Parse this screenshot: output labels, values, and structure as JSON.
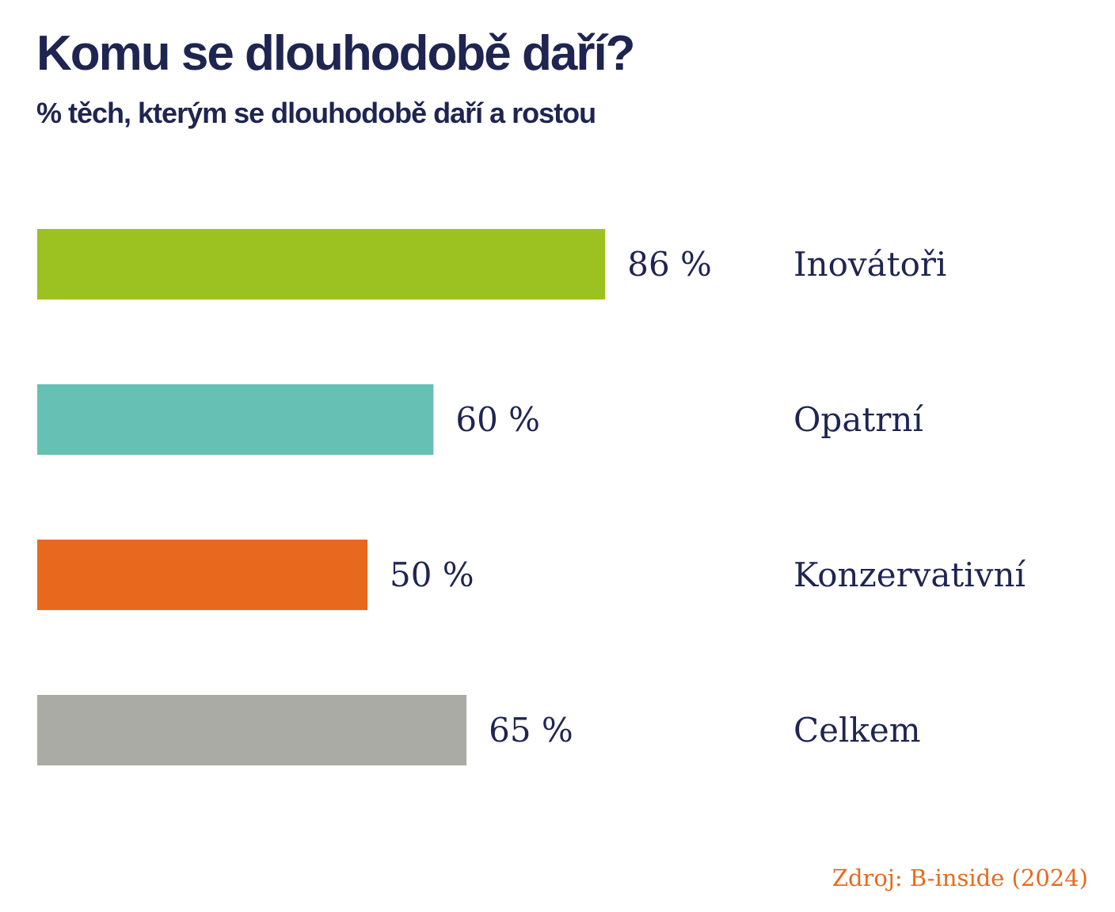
{
  "title": "Komu se dlouhodobě daří?",
  "subtitle": "% těch, kterým se dlouhodobě daří a rostou",
  "source": "Zdroj: B-inside (2024)",
  "colors": {
    "text": "#1f2551",
    "source": "#e8691e"
  },
  "chart_data": {
    "type": "bar",
    "orientation": "horizontal",
    "categories": [
      "Inovátoři",
      "Opatrní",
      "Konzervativní",
      "Celkem"
    ],
    "values": [
      86,
      60,
      50,
      65
    ],
    "value_labels": [
      "86 %",
      "60 %",
      "50 %",
      "65 %"
    ],
    "bar_colors": [
      "#9bc220",
      "#67c0b4",
      "#e8691e",
      "#ababa5"
    ],
    "unit": "%",
    "xlim": [
      0,
      100
    ],
    "grid": false,
    "legend": "none"
  }
}
